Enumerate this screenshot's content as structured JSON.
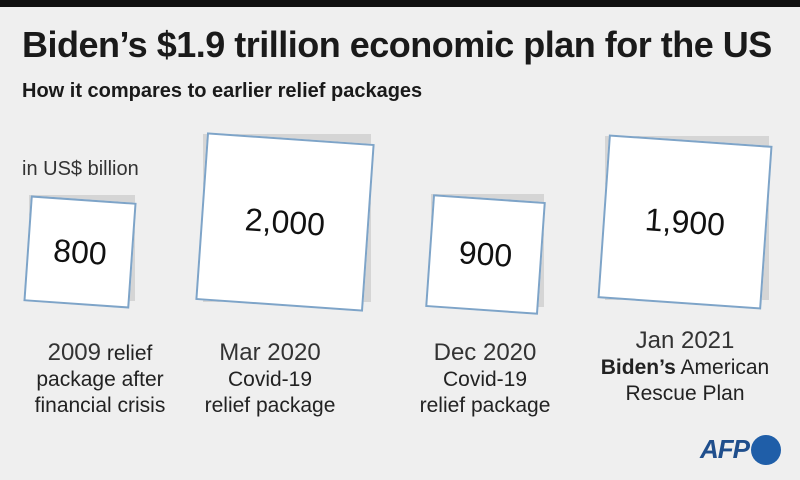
{
  "title": "Biden’s $1.9 trillion economic plan for the US",
  "subtitle": "How it compares to earlier relief packages",
  "unit_label": "in US$ billion",
  "logo": "AFP",
  "colors": {
    "square_border": "#7ea4c8",
    "shadow": "#d5d5d5",
    "logo": "#1f5ea8"
  },
  "chart_data": {
    "type": "bar",
    "title": "Biden’s $1.9 trillion economic plan for the US",
    "subtitle": "How it compares to earlier relief packages",
    "ylabel": "in US$ billion",
    "categories": [
      "2009 relief package after financial crisis",
      "Mar 2020 Covid-19 relief package",
      "Dec 2020 Covid-19 relief package",
      "Jan 2021 Biden’s American Rescue Plan"
    ],
    "values": [
      800,
      2000,
      900,
      1900
    ],
    "value_labels": [
      "800",
      "2,000",
      "900",
      "1,900"
    ],
    "encoding": "square area proportional to value"
  },
  "items": [
    {
      "value_label": "800",
      "date": "2009",
      "line1_rest": "relief",
      "line2": "package after",
      "line3": "financial crisis"
    },
    {
      "value_label": "2,000",
      "date": "Mar 2020",
      "line2": "Covid-19",
      "line3": "relief package"
    },
    {
      "value_label": "900",
      "date": "Dec 2020",
      "line2": "Covid-19",
      "line3": "relief package"
    },
    {
      "value_label": "1,900",
      "date": "Jan 2021",
      "line2_bold": "Biden’s",
      "line2_rest": "American",
      "line3": "Rescue Plan"
    }
  ]
}
